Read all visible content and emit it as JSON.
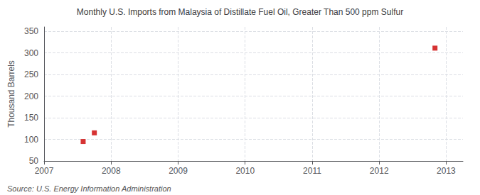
{
  "chart_data": {
    "type": "scatter",
    "title": "Monthly U.S. Imports from Malaysia of Distillate Fuel Oil, Greater Than 500 ppm Sulfur",
    "ylabel": "Thousand Barrels",
    "annotations": [
      "Source: U.S. Energy Information Administration"
    ],
    "x": [
      2007.583,
      2007.75,
      2012.833
    ],
    "values": [
      95,
      115,
      311
    ],
    "color": "#cc0000",
    "marker": "square",
    "xlim": [
      2007,
      2013.25
    ],
    "ylim": [
      50,
      360
    ],
    "xticks": [
      2007,
      2008,
      2009,
      2010,
      2011,
      2012,
      2013
    ],
    "yticks": [
      50,
      100,
      150,
      200,
      250,
      300,
      350
    ],
    "grid": true
  }
}
